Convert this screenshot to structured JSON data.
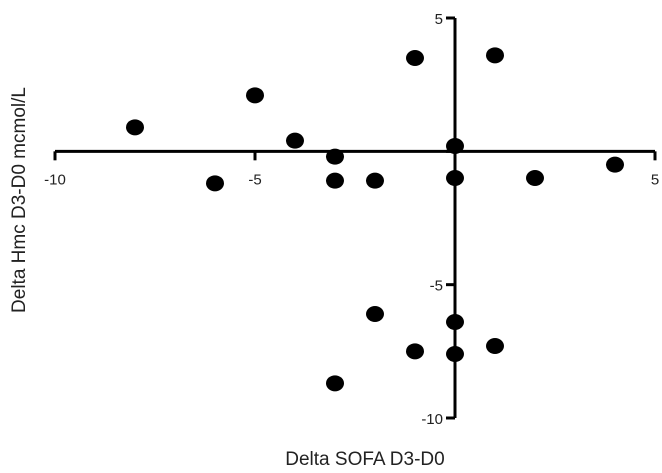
{
  "chart_data": {
    "type": "scatter",
    "title": "",
    "xlabel": "Delta SOFA D3-D0",
    "ylabel": "Delta Hmc  D3-D0 mcmol/L",
    "xlim": [
      -10,
      5
    ],
    "ylim": [
      -10,
      5
    ],
    "x_ticks": [
      -10,
      -5,
      5
    ],
    "x_tick_labels": [
      "-10",
      "-5",
      "5"
    ],
    "y_ticks": [
      5,
      -5,
      -10
    ],
    "y_tick_labels": [
      "5",
      "-5",
      "-10"
    ],
    "grid": false,
    "legend": "none",
    "marker_color": "#000000",
    "axis_color": "#000000",
    "points": [
      {
        "x": -8,
        "y": 0.9
      },
      {
        "x": -6,
        "y": -1.2
      },
      {
        "x": -5,
        "y": 2.1
      },
      {
        "x": -4,
        "y": 0.4
      },
      {
        "x": -3,
        "y": -0.2
      },
      {
        "x": -3,
        "y": -1.1
      },
      {
        "x": -3,
        "y": -8.7
      },
      {
        "x": -2,
        "y": -1.1
      },
      {
        "x": -2,
        "y": -6.1
      },
      {
        "x": -1,
        "y": 3.5
      },
      {
        "x": -1,
        "y": -7.5
      },
      {
        "x": 0,
        "y": 0.2
      },
      {
        "x": 0,
        "y": -1.0
      },
      {
        "x": 0,
        "y": -6.4
      },
      {
        "x": 0,
        "y": -7.6
      },
      {
        "x": 1,
        "y": 3.6
      },
      {
        "x": 1,
        "y": -7.3
      },
      {
        "x": 2,
        "y": -1.0
      },
      {
        "x": 4,
        "y": -0.5
      }
    ]
  }
}
